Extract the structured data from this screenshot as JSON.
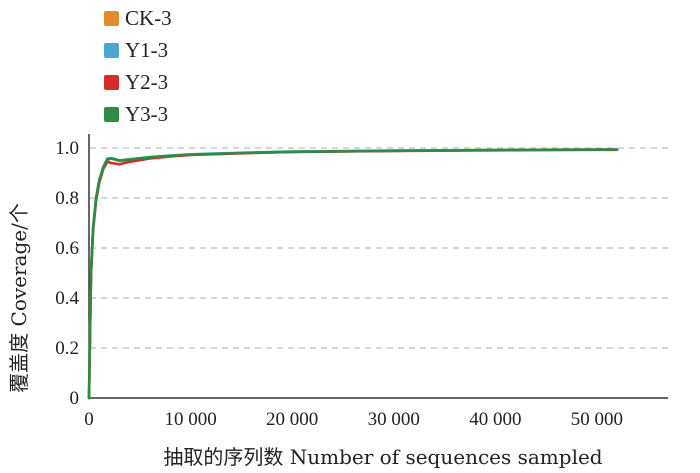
{
  "chart_data": {
    "type": "line",
    "xlabel": "抽取的序列数 Number of sequences sampled",
    "ylabel": "覆盖度 Coverage/个",
    "xlim": [
      0,
      57000
    ],
    "ylim": [
      0,
      1.0
    ],
    "x_ticks": [
      0,
      10000,
      20000,
      30000,
      40000,
      50000
    ],
    "x_tick_labels": [
      "0",
      "10 000",
      "20 000",
      "30 000",
      "40 000",
      "50 000"
    ],
    "y_ticks": [
      0,
      0.2,
      0.4,
      0.6,
      0.8,
      1.0
    ],
    "y_tick_labels": [
      "0",
      "0.2",
      "0.4",
      "0.6",
      "0.8",
      "1.0"
    ],
    "grid": "horizontal dashed",
    "legend_position": "top-left",
    "series": [
      {
        "name": "CK-3",
        "color": "#e58a2b",
        "x": [
          0,
          200,
          400,
          700,
          1000,
          1400,
          1800,
          2200,
          3000,
          4000,
          6000,
          8000,
          10000,
          15000,
          20000,
          30000,
          40000,
          50000,
          52000
        ],
        "y": [
          0,
          0.5,
          0.68,
          0.8,
          0.87,
          0.92,
          0.955,
          0.958,
          0.948,
          0.952,
          0.962,
          0.968,
          0.974,
          0.98,
          0.985,
          0.989,
          0.992,
          0.994,
          0.994
        ]
      },
      {
        "name": "Y1-3",
        "color": "#48a6cf",
        "x": [
          0,
          200,
          400,
          700,
          1000,
          1400,
          1800,
          2200,
          3000,
          4000,
          6000,
          8000,
          10000,
          15000,
          20000,
          30000,
          40000,
          50000,
          52000
        ],
        "y": [
          0,
          0.5,
          0.68,
          0.8,
          0.87,
          0.925,
          0.958,
          0.96,
          0.95,
          0.955,
          0.964,
          0.97,
          0.975,
          0.981,
          0.986,
          0.99,
          0.992,
          0.994,
          0.994
        ]
      },
      {
        "name": "Y2-3",
        "color": "#d42b2b",
        "x": [
          0,
          200,
          400,
          700,
          1000,
          1400,
          1800,
          2200,
          3000,
          4000,
          6000,
          8000,
          10000,
          15000,
          20000,
          30000,
          40000,
          50000,
          52000
        ],
        "y": [
          0,
          0.49,
          0.67,
          0.79,
          0.86,
          0.915,
          0.945,
          0.94,
          0.935,
          0.945,
          0.958,
          0.966,
          0.972,
          0.979,
          0.984,
          0.988,
          0.991,
          0.993,
          0.993
        ]
      },
      {
        "name": "Y3-3",
        "color": "#2e8b45",
        "x": [
          0,
          200,
          400,
          700,
          1000,
          1400,
          1800,
          2200,
          3000,
          4000,
          6000,
          8000,
          10000,
          15000,
          20000,
          30000,
          40000,
          50000,
          52000
        ],
        "y": [
          0,
          0.5,
          0.68,
          0.8,
          0.87,
          0.92,
          0.955,
          0.958,
          0.95,
          0.954,
          0.963,
          0.969,
          0.974,
          0.98,
          0.985,
          0.989,
          0.992,
          0.994,
          0.994
        ]
      }
    ]
  }
}
